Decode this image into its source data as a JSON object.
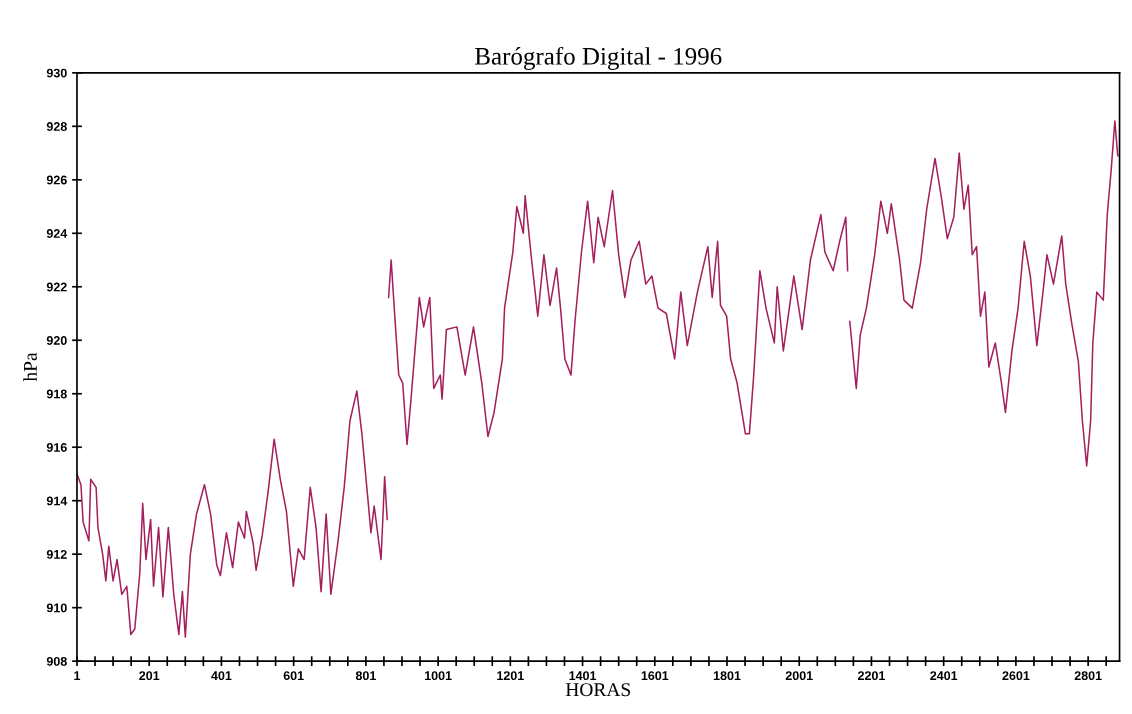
{
  "chart_data": {
    "type": "line",
    "title": "Barógrafo Digital - 1996",
    "xlabel": "HORAS",
    "ylabel": "hPa",
    "x": [
      1,
      12,
      18,
      34,
      39,
      54,
      59,
      72,
      81,
      89,
      101,
      112,
      125,
      139,
      150,
      161,
      175,
      183,
      192,
      205,
      213,
      227,
      239,
      254,
      269,
      283,
      293,
      301,
      315,
      332,
      354,
      371,
      388,
      398,
      415,
      432,
      448,
      465,
      470,
      489,
      497,
      514,
      530,
      547,
      564,
      581,
      600,
      614,
      630,
      647,
      663,
      677,
      691,
      704,
      724,
      741,
      757,
      776,
      790,
      807,
      815,
      824,
      843,
      853,
      860,
      862,
      864,
      871,
      883,
      892,
      903,
      915,
      926,
      938,
      949,
      961,
      978,
      989,
      1007,
      1012,
      1024,
      1053,
      1076,
      1099,
      1122,
      1139,
      1156,
      1179,
      1185,
      1208,
      1219,
      1237,
      1242,
      1260,
      1277,
      1294,
      1311,
      1329,
      1340,
      1352,
      1369,
      1380,
      1398,
      1415,
      1432,
      1444,
      1461,
      1484,
      1501,
      1518,
      1535,
      1558,
      1576,
      1593,
      1610,
      1633,
      1656,
      1673,
      1691,
      1719,
      1748,
      1760,
      1775,
      1783,
      1800,
      1811,
      1829,
      1852,
      1863,
      1875,
      1892,
      1909,
      1932,
      1940,
      1957,
      1986,
      2009,
      2032,
      2061,
      2072,
      2095,
      2113,
      2130,
      2135,
      2139,
      2141,
      2159,
      2170,
      2187,
      2210,
      2227,
      2245,
      2256,
      2279,
      2291,
      2314,
      2337,
      2354,
      2377,
      2394,
      2411,
      2429,
      2444,
      2457,
      2469,
      2480,
      2492,
      2503,
      2515,
      2526,
      2544,
      2561,
      2572,
      2590,
      2607,
      2624,
      2641,
      2659,
      2676,
      2687,
      2705,
      2728,
      2739,
      2756,
      2774,
      2785,
      2797,
      2808,
      2814,
      2825,
      2843,
      2854,
      2865,
      2875,
      2883
    ],
    "series": [
      {
        "color": "#a3205c",
        "values": [
          915.0,
          914.6,
          913.2,
          912.5,
          914.8,
          914.5,
          913.0,
          912.0,
          911.0,
          912.3,
          911.0,
          911.8,
          910.5,
          910.8,
          909.0,
          909.2,
          911.3,
          913.9,
          911.8,
          913.3,
          910.8,
          913.0,
          910.4,
          913.0,
          910.5,
          909.0,
          910.6,
          908.9,
          912.0,
          913.5,
          914.6,
          913.5,
          911.6,
          911.2,
          912.8,
          911.5,
          913.2,
          912.6,
          913.6,
          912.4,
          911.4,
          912.7,
          914.3,
          916.3,
          914.8,
          913.6,
          910.8,
          912.2,
          911.8,
          914.5,
          913.0,
          910.6,
          913.5,
          910.5,
          912.5,
          914.5,
          917.0,
          918.1,
          916.5,
          914.0,
          912.8,
          913.8,
          911.8,
          914.9,
          913.3,
          null,
          921.6,
          923.0,
          920.5,
          918.7,
          918.4,
          916.1,
          917.8,
          919.8,
          921.6,
          920.5,
          921.6,
          918.2,
          918.7,
          917.8,
          920.4,
          920.5,
          918.7,
          920.5,
          918.4,
          916.4,
          917.3,
          919.3,
          921.2,
          923.3,
          925.0,
          924.0,
          925.4,
          923.0,
          920.9,
          923.2,
          921.3,
          922.7,
          921.2,
          919.3,
          918.7,
          920.7,
          923.3,
          925.2,
          922.9,
          924.6,
          923.5,
          925.6,
          923.2,
          921.6,
          923.0,
          923.7,
          922.1,
          922.4,
          921.2,
          921.0,
          919.3,
          921.8,
          919.8,
          921.8,
          923.5,
          921.6,
          923.7,
          921.3,
          920.9,
          919.3,
          918.4,
          916.5,
          916.5,
          918.7,
          922.6,
          921.2,
          919.9,
          922.0,
          919.6,
          922.4,
          920.4,
          923.0,
          924.7,
          923.3,
          922.6,
          923.7,
          924.6,
          922.6,
          null,
          920.7,
          918.2,
          920.2,
          921.2,
          923.2,
          925.2,
          924.0,
          925.1,
          923.0,
          921.5,
          921.2,
          922.9,
          924.9,
          926.8,
          925.4,
          923.8,
          924.6,
          927.0,
          924.9,
          925.8,
          923.2,
          923.5,
          920.9,
          921.8,
          919.0,
          919.9,
          918.4,
          917.3,
          919.6,
          921.2,
          923.7,
          922.4,
          919.8,
          921.8,
          923.2,
          922.1,
          923.9,
          922.1,
          920.6,
          919.2,
          917.0,
          915.3,
          917.0,
          919.9,
          921.8,
          921.5,
          924.7,
          926.4,
          928.2,
          926.9
        ]
      }
    ],
    "xlim": [
      1,
      2888
    ],
    "ylim": [
      908,
      930
    ],
    "xticks": [
      {
        "value": 1,
        "label": "1"
      },
      {
        "value": 51,
        "label": null
      },
      {
        "value": 101,
        "label": null
      },
      {
        "value": 151,
        "label": null
      },
      {
        "value": 201,
        "label": "201"
      },
      {
        "value": 251,
        "label": null
      },
      {
        "value": 301,
        "label": null
      },
      {
        "value": 351,
        "label": null
      },
      {
        "value": 401,
        "label": "401"
      },
      {
        "value": 451,
        "label": null
      },
      {
        "value": 501,
        "label": null
      },
      {
        "value": 551,
        "label": null
      },
      {
        "value": 601,
        "label": "601"
      },
      {
        "value": 651,
        "label": null
      },
      {
        "value": 701,
        "label": null
      },
      {
        "value": 751,
        "label": null
      },
      {
        "value": 801,
        "label": "801"
      },
      {
        "value": 851,
        "label": null
      },
      {
        "value": 901,
        "label": null
      },
      {
        "value": 951,
        "label": null
      },
      {
        "value": 1001,
        "label": "1001"
      },
      {
        "value": 1051,
        "label": null
      },
      {
        "value": 1101,
        "label": null
      },
      {
        "value": 1151,
        "label": null
      },
      {
        "value": 1201,
        "label": "1201"
      },
      {
        "value": 1251,
        "label": null
      },
      {
        "value": 1301,
        "label": null
      },
      {
        "value": 1351,
        "label": null
      },
      {
        "value": 1401,
        "label": "1401"
      },
      {
        "value": 1451,
        "label": null
      },
      {
        "value": 1501,
        "label": null
      },
      {
        "value": 1551,
        "label": null
      },
      {
        "value": 1601,
        "label": "1601"
      },
      {
        "value": 1651,
        "label": null
      },
      {
        "value": 1701,
        "label": null
      },
      {
        "value": 1751,
        "label": null
      },
      {
        "value": 1801,
        "label": "1801"
      },
      {
        "value": 1851,
        "label": null
      },
      {
        "value": 1901,
        "label": null
      },
      {
        "value": 1951,
        "label": null
      },
      {
        "value": 2001,
        "label": "2001"
      },
      {
        "value": 2051,
        "label": null
      },
      {
        "value": 2101,
        "label": null
      },
      {
        "value": 2151,
        "label": null
      },
      {
        "value": 2201,
        "label": "2201"
      },
      {
        "value": 2251,
        "label": null
      },
      {
        "value": 2301,
        "label": null
      },
      {
        "value": 2351,
        "label": null
      },
      {
        "value": 2401,
        "label": "2401"
      },
      {
        "value": 2451,
        "label": null
      },
      {
        "value": 2501,
        "label": null
      },
      {
        "value": 2551,
        "label": null
      },
      {
        "value": 2601,
        "label": "2601"
      },
      {
        "value": 2651,
        "label": null
      },
      {
        "value": 2701,
        "label": null
      },
      {
        "value": 2751,
        "label": null
      },
      {
        "value": 2801,
        "label": "2801"
      },
      {
        "value": 2851,
        "label": null
      }
    ],
    "yticks": [
      908,
      910,
      912,
      914,
      916,
      918,
      920,
      922,
      924,
      926,
      928,
      930
    ],
    "grid": false,
    "legend": false,
    "marker": "none",
    "line_style": "solid"
  }
}
